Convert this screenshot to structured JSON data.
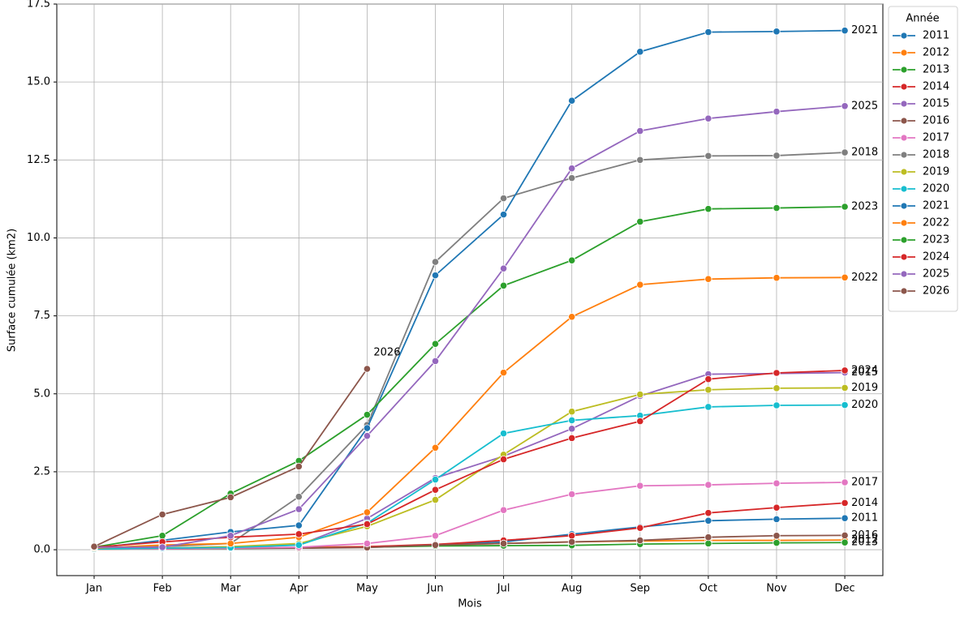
{
  "chart_data": {
    "type": "line",
    "xlabel": "Mois",
    "ylabel": "Surface cumulée (km2)",
    "categories": [
      "Jan",
      "Feb",
      "Mar",
      "Apr",
      "May",
      "Jun",
      "Jul",
      "Aug",
      "Sep",
      "Oct",
      "Nov",
      "Dec"
    ],
    "ylim": [
      -0.83,
      17.5
    ],
    "yticks": [
      {
        "value": 0,
        "label": "0.0"
      },
      2.5,
      {
        "value": 5,
        "label": "5.0"
      },
      7.5,
      {
        "value": 10,
        "label": "10.0"
      },
      12.5,
      {
        "value": 15,
        "label": "15.0"
      },
      17.5
    ],
    "grid": true,
    "legend": "outside upper right",
    "legend_title": "Année",
    "series": [
      {
        "name": "2011",
        "color": "#1f77b4",
        "values": [
          0.02,
          0.03,
          0.05,
          0.07,
          0.1,
          0.15,
          0.25,
          0.5,
          0.73,
          0.93,
          0.98,
          1.01
        ]
      },
      {
        "name": "2012",
        "color": "#ff7f0e",
        "values": [
          0.02,
          0.03,
          0.05,
          0.07,
          0.1,
          0.15,
          0.2,
          0.25,
          0.28,
          0.3,
          0.3,
          0.31
        ]
      },
      {
        "name": "2013",
        "color": "#2ca02c",
        "values": [
          0.02,
          0.03,
          0.04,
          0.06,
          0.08,
          0.12,
          0.13,
          0.14,
          0.18,
          0.2,
          0.22,
          0.23
        ]
      },
      {
        "name": "2014",
        "color": "#d62728",
        "values": [
          0.03,
          0.05,
          0.05,
          0.05,
          0.1,
          0.17,
          0.3,
          0.45,
          0.7,
          1.18,
          1.35,
          1.5
        ]
      },
      {
        "name": "2015",
        "color": "#9467bd",
        "values": [
          0.02,
          0.05,
          0.1,
          0.15,
          1.0,
          2.3,
          3.0,
          3.88,
          4.93,
          5.63,
          5.65,
          5.68
        ]
      },
      {
        "name": "2016",
        "color": "#8c564b",
        "values": [
          0.02,
          0.03,
          0.04,
          0.05,
          0.07,
          0.15,
          0.2,
          0.25,
          0.3,
          0.4,
          0.45,
          0.46
        ]
      },
      {
        "name": "2017",
        "color": "#e377c2",
        "values": [
          0.02,
          0.03,
          0.05,
          0.08,
          0.2,
          0.45,
          1.27,
          1.78,
          2.05,
          2.08,
          2.13,
          2.16
        ]
      },
      {
        "name": "2018",
        "color": "#7f7f7f",
        "values": [
          0.05,
          0.1,
          0.2,
          1.7,
          4.0,
          9.23,
          11.27,
          11.92,
          12.5,
          12.63,
          12.64,
          12.74
        ]
      },
      {
        "name": "2019",
        "color": "#bcbd22",
        "values": [
          0.02,
          0.05,
          0.1,
          0.2,
          0.75,
          1.6,
          3.05,
          4.43,
          4.98,
          5.13,
          5.18,
          5.19
        ]
      },
      {
        "name": "2020",
        "color": "#17becf",
        "values": [
          0.02,
          0.05,
          0.07,
          0.15,
          0.85,
          2.25,
          3.73,
          4.15,
          4.3,
          4.58,
          4.63,
          4.64
        ]
      },
      {
        "name": "2021",
        "color": "#1f77b4",
        "values": [
          0.05,
          0.3,
          0.57,
          0.78,
          3.9,
          8.8,
          10.75,
          14.4,
          15.97,
          16.6,
          16.62,
          16.65
        ]
      },
      {
        "name": "2022",
        "color": "#ff7f0e",
        "values": [
          0.05,
          0.15,
          0.2,
          0.4,
          1.2,
          3.27,
          5.68,
          7.47,
          8.5,
          8.68,
          8.72,
          8.73
        ]
      },
      {
        "name": "2023",
        "color": "#2ca02c",
        "values": [
          0.08,
          0.45,
          1.8,
          2.85,
          4.33,
          6.6,
          8.47,
          9.28,
          10.52,
          10.93,
          10.96,
          11.0
        ]
      },
      {
        "name": "2024",
        "color": "#d62728",
        "values": [
          0.08,
          0.25,
          0.4,
          0.5,
          0.82,
          1.92,
          2.9,
          3.58,
          4.12,
          5.47,
          5.67,
          5.75
        ]
      },
      {
        "name": "2025",
        "color": "#9467bd",
        "values": [
          0.08,
          0.08,
          0.45,
          1.3,
          3.65,
          6.05,
          9.02,
          12.23,
          13.43,
          13.83,
          14.05,
          14.23
        ]
      },
      {
        "name": "2026",
        "color": "#8c564b",
        "values": [
          0.1,
          1.13,
          1.68,
          2.67,
          5.8,
          null,
          null,
          null,
          null,
          null,
          null,
          null
        ]
      }
    ]
  }
}
